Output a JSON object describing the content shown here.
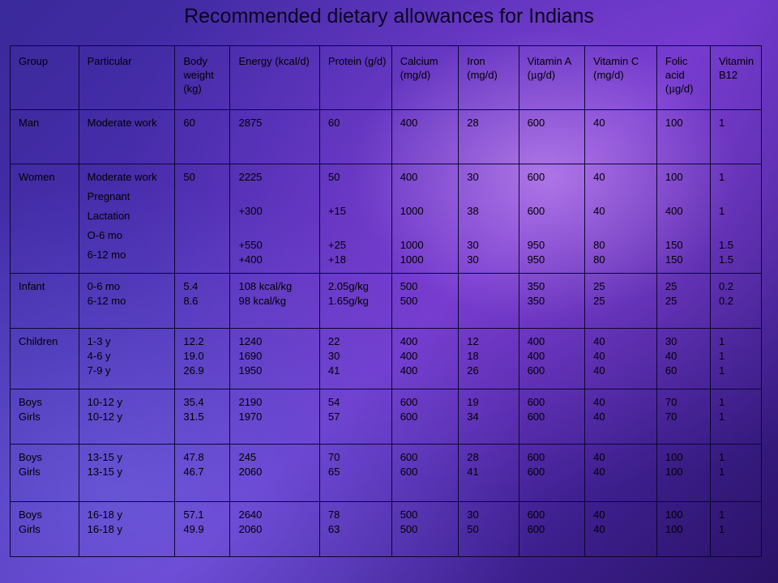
{
  "title": "Recommended dietary allowances for Indians",
  "headers": {
    "group": "Group",
    "particular": "Particular",
    "body_weight": "Body weight (kg)",
    "energy": "Energy (kcal/d)",
    "protein": "Protein (g/d)",
    "calcium": "Calcium (mg/d)",
    "iron": "Iron (mg/d)",
    "vitamin_a_pre": "Vitamin A (",
    "vitamin_a_mu": "μ",
    "vitamin_a_post": "g/d)",
    "vitamin_c": "Vitamin C (mg/d)",
    "folic_pre": "Folic acid (",
    "folic_mu": "μ",
    "folic_post": "g/d)",
    "b12": "Vitamin B12"
  },
  "rows": {
    "man": {
      "group": "Man",
      "particular": "Moderate work",
      "weight": "60",
      "energy": "2875",
      "protein": "60",
      "calcium": "400",
      "iron": "28",
      "vit_a": "600",
      "vit_c": "40",
      "folic": "100",
      "b12": "1"
    },
    "women": {
      "group": "Women",
      "particular": [
        "Moderate work",
        "Pregnant",
        "Lactation",
        "O-6 mo",
        "6-12 mo"
      ],
      "weight": [
        "50"
      ],
      "energy": [
        "2225",
        "+300",
        "+550",
        "+400"
      ],
      "protein": [
        "50",
        "+15",
        "+25",
        "+18"
      ],
      "calcium": [
        "400",
        "1000",
        "1000",
        "1000"
      ],
      "iron": [
        "30",
        "38",
        "30",
        "30"
      ],
      "vit_a": [
        "600",
        "600",
        "950",
        "950"
      ],
      "vit_c": [
        "40",
        "40",
        "80",
        "80"
      ],
      "folic": [
        "100",
        "400",
        "150",
        "150"
      ],
      "b12": [
        "1",
        "1",
        "1.5",
        "1.5"
      ]
    },
    "infant": {
      "group": "Infant",
      "particular": [
        "0-6 mo",
        "6-12 mo"
      ],
      "weight": [
        "5.4",
        "8.6"
      ],
      "energy": [
        "108 kcal/kg",
        "98 kcal/kg"
      ],
      "protein": [
        "2.05g/kg",
        "1.65g/kg"
      ],
      "calcium": [
        "500",
        "500"
      ],
      "iron": [],
      "vit_a": [
        "350",
        "350"
      ],
      "vit_c": [
        "25",
        "25"
      ],
      "folic": [
        "25",
        "25"
      ],
      "b12": [
        "0.2",
        "0.2"
      ]
    },
    "children": {
      "group": "Children",
      "particular": [
        "1-3 y",
        "4-6 y",
        "7-9 y"
      ],
      "weight": [
        "12.2",
        "19.0",
        "26.9"
      ],
      "energy": [
        "1240",
        "1690",
        "1950"
      ],
      "protein": [
        "22",
        "30",
        "41"
      ],
      "calcium": [
        "400",
        "400",
        "400"
      ],
      "iron": [
        "12",
        "18",
        "26"
      ],
      "vit_a": [
        "400",
        "400",
        "600"
      ],
      "vit_c": [
        "40",
        "40",
        "40"
      ],
      "folic": [
        "30",
        "40",
        "60"
      ],
      "b12": [
        "1",
        "1",
        "1"
      ]
    },
    "teen10": {
      "group": [
        "Boys",
        "Girls"
      ],
      "particular": [
        "10-12 y",
        "10-12 y"
      ],
      "weight": [
        "35.4",
        "31.5"
      ],
      "energy": [
        "2190",
        "1970"
      ],
      "protein": [
        "54",
        "57"
      ],
      "calcium": [
        "600",
        "600"
      ],
      "iron": [
        "19",
        "34"
      ],
      "vit_a": [
        "600",
        "600"
      ],
      "vit_c": [
        "40",
        "40"
      ],
      "folic": [
        "70",
        "70"
      ],
      "b12": [
        "1",
        "1"
      ]
    },
    "teen13": {
      "group": [
        "Boys",
        "Girls"
      ],
      "particular": [
        "13-15 y",
        "13-15 y"
      ],
      "weight": [
        "47.8",
        "46.7"
      ],
      "energy": [
        "245",
        "2060"
      ],
      "protein": [
        "70",
        "65"
      ],
      "calcium": [
        "600",
        "600"
      ],
      "iron": [
        "28",
        "41"
      ],
      "vit_a": [
        "600",
        "600"
      ],
      "vit_c": [
        "40",
        "40"
      ],
      "folic": [
        "100",
        "100"
      ],
      "b12": [
        "1",
        "1"
      ]
    },
    "teen16": {
      "group": [
        "Boys",
        "Girls"
      ],
      "particular": [
        "16-18 y",
        "16-18 y"
      ],
      "weight": [
        "57.1",
        "49.9"
      ],
      "energy": [
        "2640",
        "2060"
      ],
      "protein": [
        "78",
        "63"
      ],
      "calcium": [
        "500",
        "500"
      ],
      "iron": [
        "30",
        "50"
      ],
      "vit_a": [
        "600",
        "600"
      ],
      "vit_c": [
        "40",
        "40"
      ],
      "folic": [
        "100",
        "100"
      ],
      "b12": [
        "1",
        "1"
      ]
    }
  }
}
